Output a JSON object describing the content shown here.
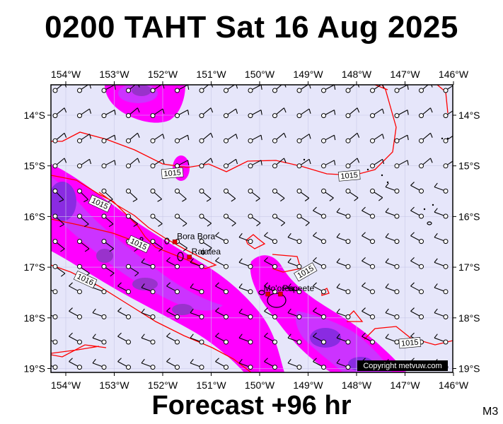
{
  "title": "0200 TAHT Sat 16 Aug 2025",
  "footer": "Forecast +96 hr",
  "model_label": "M3",
  "copyright": "Copyright metvuw.com",
  "colors": {
    "background": "#e6e6fa",
    "isobar": "#ff0000",
    "rain_light": "#ff00ff",
    "rain_medium": "#cc33ff",
    "rain_heavy": "#8a2be2"
  },
  "axes": {
    "lon_labels": [
      "154°W",
      "153°W",
      "152°W",
      "151°W",
      "150°W",
      "149°W",
      "148°W",
      "147°W",
      "146°W"
    ],
    "lat_labels": [
      "14°S",
      "15°S",
      "16°S",
      "17°S",
      "18°S",
      "19°S"
    ]
  },
  "places": [
    {
      "name": "Bora Bora",
      "lon": -151.75,
      "lat": -16.5
    },
    {
      "name": "Raiatea",
      "lon": -151.45,
      "lat": -16.8
    },
    {
      "name": "Mo'orea",
      "lon": -149.83,
      "lat": -17.53
    },
    {
      "name": "Papeete",
      "lon": -149.57,
      "lat": -17.53
    }
  ],
  "isobar_labels": [
    {
      "text": "1015",
      "lon": -151.8,
      "lat": -15.15
    },
    {
      "text": "1015",
      "lon": -148.15,
      "lat": -15.2
    },
    {
      "text": "1015",
      "lon": -153.3,
      "lat": -15.75
    },
    {
      "text": "1015",
      "lon": -152.5,
      "lat": -16.55
    },
    {
      "text": "1015",
      "lon": -149.05,
      "lat": -17.1
    },
    {
      "text": "1016",
      "lon": -153.6,
      "lat": -17.25
    },
    {
      "text": "1015",
      "lon": -146.9,
      "lat": -18.5
    }
  ]
}
